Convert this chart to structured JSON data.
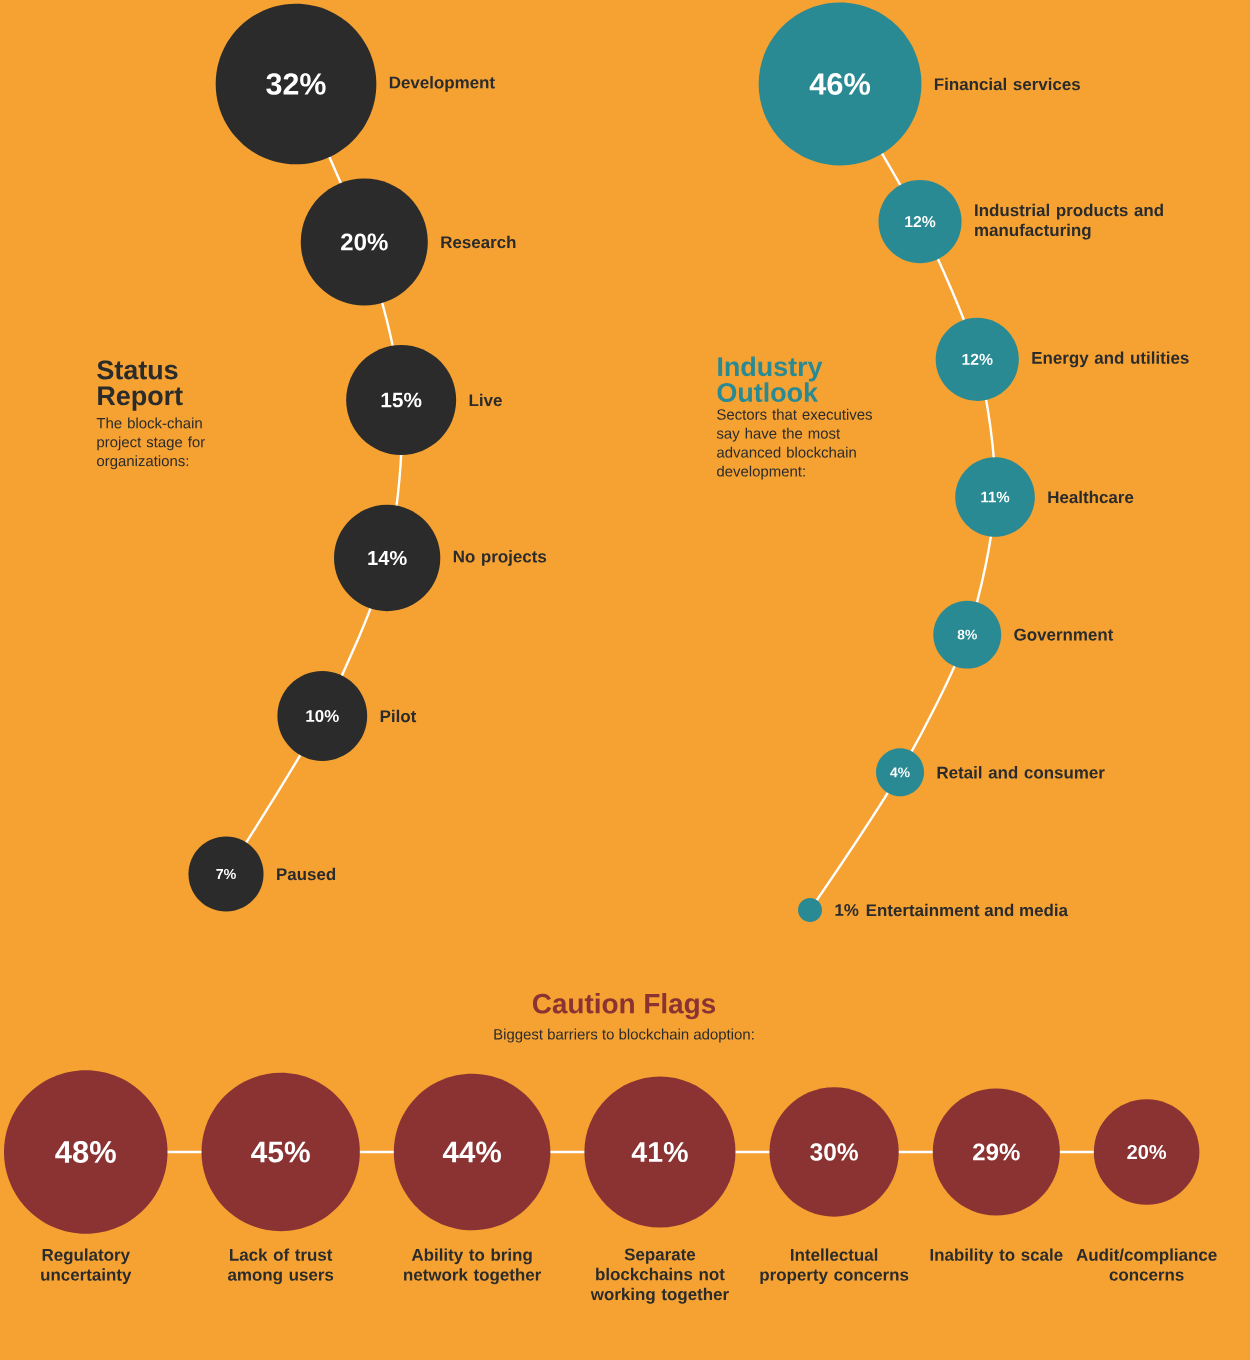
{
  "chart_data": [
    {
      "type": "other",
      "title": "Status Report",
      "subtitle": "The block-chain project stage for organizations:",
      "color": "#2b2b2b",
      "categories": [
        "Development",
        "Research",
        "Live",
        "No projects",
        "Pilot",
        "Paused"
      ],
      "values": [
        32,
        20,
        15,
        14,
        10,
        7
      ],
      "value_labels": [
        "32%",
        "20%",
        "15%",
        "14%",
        "10%",
        "7%"
      ]
    },
    {
      "type": "other",
      "title": "Industry Outlook",
      "subtitle": "Sectors that executives say have the most advanced blockchain development:",
      "color": "#2a8a93",
      "categories": [
        "Financial services",
        "Industrial products and manufacturing",
        "Energy and utilities",
        "Healthcare",
        "Government",
        "Retail and consumer",
        "Entertainment and media"
      ],
      "values": [
        46,
        12,
        12,
        11,
        8,
        4,
        1
      ],
      "value_labels": [
        "46%",
        "12%",
        "12%",
        "11%",
        "8%",
        "4%",
        "1%"
      ]
    },
    {
      "type": "other",
      "title": "Caution Flags",
      "subtitle": "Biggest barriers to blockchain adoption:",
      "color": "#8b3333",
      "categories": [
        "Regulatory uncertainty",
        "Lack of trust among users",
        "Ability to bring network together",
        "Separate blockchains not working together",
        "Intellectual property concerns",
        "Inability to scale",
        "Audit/compliance concerns"
      ],
      "values": [
        48,
        45,
        44,
        41,
        30,
        29,
        20
      ],
      "value_labels": [
        "48%",
        "45%",
        "44%",
        "41%",
        "30%",
        "29%",
        "20%"
      ]
    }
  ]
}
